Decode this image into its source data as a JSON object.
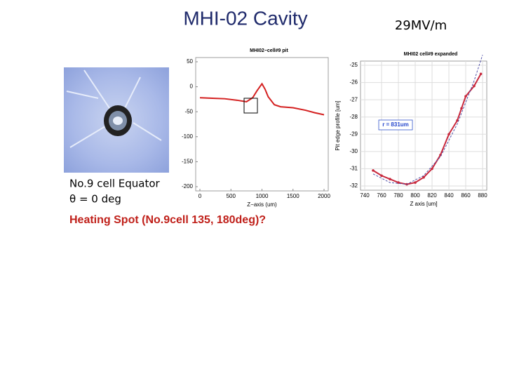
{
  "title": "MHI-02 Cavity",
  "field": "29MV/m",
  "caption": [
    "No.9 cell Equator",
    "θ = 0 deg"
  ],
  "heading": "Heating Spot (No.9cell 135, 180deg)?",
  "chart_data": [
    {
      "type": "line",
      "title": "MHI02−cell#9 pit",
      "xlabel": "Z−axis (um)",
      "xlim": [
        0,
        2000
      ],
      "xticks": [
        0,
        500,
        1000,
        1500,
        2000
      ],
      "ylim": [
        -200,
        50
      ],
      "yticks": [
        50,
        0,
        -50,
        -100,
        -150,
        -200
      ],
      "grid": false,
      "series": [
        {
          "color": "#d42020",
          "x": [
            0,
            200,
            400,
            600,
            750,
            850,
            920,
            1000,
            1050,
            1100,
            1200,
            1300,
            1500,
            1700,
            1850,
            2000
          ],
          "values": [
            -22,
            -23,
            -24,
            -27,
            -30,
            -22,
            -8,
            6,
            -5,
            -20,
            -36,
            -40,
            -42,
            -47,
            -52,
            -56
          ]
        }
      ]
    },
    {
      "type": "line",
      "title": "MHI02 cell#9 expanded",
      "xlabel": "Z axis [um]",
      "ylabel": "Pit edge profile [um]",
      "annotation": "r = 831um",
      "xlim": [
        740,
        880
      ],
      "xticks": [
        740,
        760,
        780,
        800,
        820,
        840,
        860,
        880
      ],
      "ylim": [
        -32,
        -25
      ],
      "yticks": [
        -25,
        -26,
        -27,
        -28,
        -29,
        -30,
        -31,
        -32
      ],
      "grid": true,
      "series": [
        {
          "color": "#c8283c",
          "markers": true,
          "x": [
            750,
            760,
            770,
            780,
            790,
            800,
            810,
            820,
            830,
            840,
            850,
            855,
            860,
            870,
            878
          ],
          "values": [
            -31.1,
            -31.4,
            -31.6,
            -31.8,
            -31.9,
            -31.8,
            -31.5,
            -31.0,
            -30.2,
            -29.0,
            -28.2,
            -27.5,
            -26.8,
            -26.2,
            -25.5
          ]
        },
        {
          "color": "#5050a8",
          "markers": false,
          "x": [
            750,
            770,
            790,
            810,
            830,
            850,
            870,
            880
          ],
          "values": [
            -31.3,
            -31.8,
            -31.9,
            -31.4,
            -30.3,
            -28.4,
            -25.9,
            -24.4
          ]
        }
      ]
    }
  ]
}
